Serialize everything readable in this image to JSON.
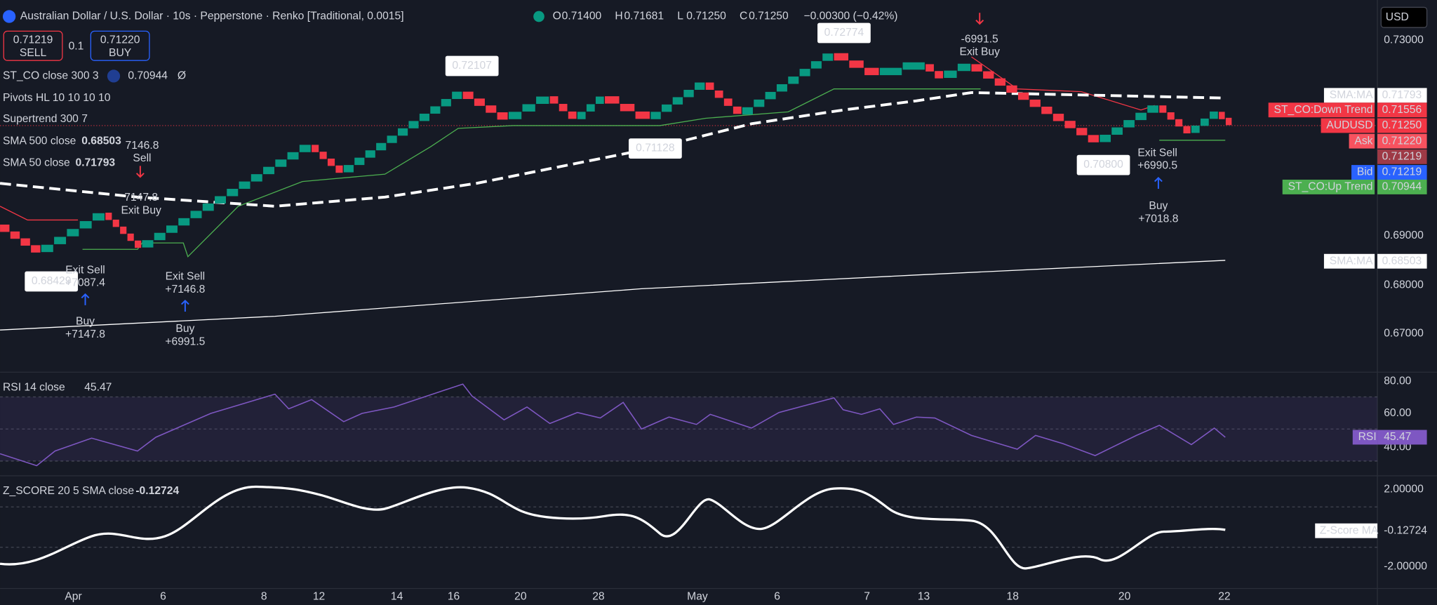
{
  "header": {
    "title": "Australian Dollar / U.S. Dollar · 10s · Pepperstone · Renko [Traditional, 0.0015]",
    "ohlc": [
      {
        "label": "O",
        "value": "0.71400"
      },
      {
        "label": "H",
        "value": "0.71681"
      },
      {
        "label": "L",
        "value": "0.71250"
      },
      {
        "label": "C",
        "value": "0.71250"
      }
    ],
    "change": "−0.00300 (−0.42%)"
  },
  "trade": {
    "sell_price": "0.71219",
    "sell": "SELL",
    "size": "0.1",
    "buy_price": "0.71220",
    "buy": "BUY"
  },
  "currency": "USD",
  "legend": [
    {
      "name": "ST_CO close 300 3",
      "value": "0.70944",
      "extra": "Ø"
    },
    {
      "name": "Pivots HL 10 10 10 10"
    },
    {
      "name": "Supertrend 300 7"
    },
    {
      "name": "SMA 500 close",
      "value": "0.68503"
    },
    {
      "name": "SMA 50 close",
      "value": "0.71793"
    }
  ],
  "price_axis": [
    "0.73000",
    "0.69000",
    "0.68000",
    "0.67000"
  ],
  "price_labels": [
    {
      "name": "SMA:MA",
      "value": "0.71793"
    },
    {
      "name": "ST_CO:Down Trend",
      "value": "0.71556"
    },
    {
      "name": "AUDUSD",
      "value": "0.71250"
    },
    {
      "name": "Ask",
      "value": "0.71220"
    },
    {
      "value": "0.71219"
    },
    {
      "name": "Bid",
      "value": "0.71219"
    },
    {
      "name": "ST_CO:Up Trend",
      "value": "0.70944"
    },
    {
      "name": "SMA:MA",
      "value": "0.68503"
    }
  ],
  "pivots": [
    "0.72107",
    "0.72774",
    "0.71128",
    "0.70800",
    "0.68429"
  ],
  "signals": [
    {
      "lines": [
        "-6991.5",
        "Exit Buy"
      ]
    },
    {
      "lines": [
        "Exit Sell",
        "+6990.5"
      ]
    },
    {
      "lines": [
        "Buy",
        "+7018.8"
      ]
    },
    {
      "lines": [
        "7146.8",
        "Sell"
      ]
    },
    {
      "lines": [
        "7147.8",
        "Exit Buy"
      ]
    },
    {
      "lines": [
        "Exit Sell",
        "+7087.4"
      ]
    },
    {
      "lines": [
        "Buy",
        "+7147.8"
      ]
    },
    {
      "lines": [
        "Exit Sell",
        "+7146.8"
      ]
    },
    {
      "lines": [
        "Buy",
        "+6991.5"
      ]
    }
  ],
  "rsi": {
    "title": "RSI 14 close",
    "value": "45.47",
    "axis": [
      "80.00",
      "60.00",
      "40.00"
    ],
    "label": "RSI"
  },
  "zscore": {
    "title": "Z_SCORE 20 5 SMA close",
    "value": "-0.12724",
    "axis": [
      "2.00000",
      "-2.00000"
    ],
    "label": "Z-Score MA"
  },
  "time_axis": [
    "Apr",
    "6",
    "8",
    "12",
    "14",
    "16",
    "20",
    "28",
    "May",
    "6",
    "7",
    "13",
    "18",
    "20",
    "22"
  ]
}
